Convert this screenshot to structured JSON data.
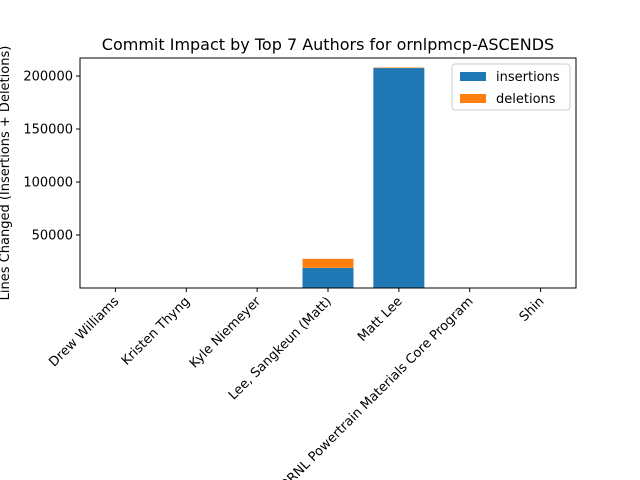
{
  "chart_data": {
    "type": "bar",
    "stacked": true,
    "title": "Commit Impact by Top 7 Authors for ornlpmcp-ASCENDS",
    "xlabel": "",
    "ylabel": "Lines Changed (Insertions + Deletions)",
    "categories": [
      "Drew Williams",
      "Kristen Thyng",
      "Kyle Niemeyer",
      "Lee, Sangkeun (Matt)",
      "Matt Lee",
      "ORNL Powertrain Materials Core Program",
      "Shin"
    ],
    "series": [
      {
        "name": "insertions",
        "color": "#1f77b4",
        "values": [
          20,
          10,
          10,
          19000,
          207500,
          30,
          10
        ]
      },
      {
        "name": "deletions",
        "color": "#ff7f0e",
        "values": [
          10,
          5,
          5,
          8500,
          500,
          10,
          5
        ]
      }
    ],
    "ylim": [
      0,
      217000
    ],
    "yticks": [
      50000,
      100000,
      150000,
      200000
    ],
    "legend_position": "top-right",
    "grid": false
  }
}
